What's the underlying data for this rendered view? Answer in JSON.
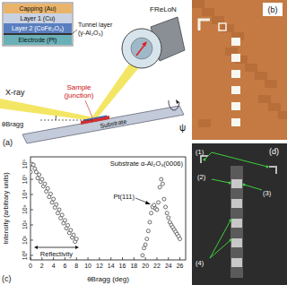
{
  "panel_a": {
    "label": "(a)",
    "layers": [
      "Capping (Au)",
      "Layer 1 (Cu)",
      "Layer 2 (CoFe₂O₄)",
      "Electrode (Pt)"
    ],
    "tunnel_layer": [
      "Tunnel layer",
      "(γ-Al₂O₃)"
    ],
    "detector": "FReLoN",
    "sample": [
      "Sample",
      "(junction)"
    ],
    "beam": "X-ray",
    "angle": "θBragg",
    "substrate": "Substrate",
    "rotation": "ψ"
  },
  "panel_b": {
    "label": "(b)"
  },
  "chart_data": {
    "type": "scatter",
    "label": "(c)",
    "x_label": "θBragg (deg)",
    "y_label": "Intensity (arbitrary units)",
    "annotations": [
      "Substrate α-Al₂O₃(0006)",
      "Reflectivity",
      "Pt(111)"
    ],
    "xlim": [
      0,
      27
    ],
    "xticks": [
      0,
      2,
      4,
      6,
      8,
      10,
      12,
      14,
      16,
      18,
      20,
      22,
      24,
      26
    ],
    "ylim": [
      0.5,
      3000000
    ],
    "yticks": [
      {
        "value": 1,
        "label": "10⁰"
      },
      {
        "value": 10,
        "label": "10¹"
      },
      {
        "value": 100,
        "label": "10²"
      },
      {
        "value": 1000,
        "label": "10³"
      },
      {
        "value": 10000,
        "label": "10⁴"
      },
      {
        "value": 100000,
        "label": "10⁵"
      },
      {
        "value": 1000000,
        "label": "10⁶"
      }
    ],
    "log": "y",
    "grid": false,
    "series": [
      {
        "color": "#333333",
        "marker": "circle",
        "x": [
          0,
          0.25,
          0.5,
          0.75,
          1,
          1.25,
          1.5,
          1.75,
          2,
          2.25,
          2.5,
          2.75,
          3,
          3.25,
          3.5,
          3.75,
          4,
          4.25,
          4.5,
          4.75,
          5,
          5.25,
          5.5,
          5.75,
          6,
          6.25,
          6.5,
          6.75,
          7,
          7.25,
          7.5,
          7.75,
          8
        ],
        "values": [
          300000,
          1000000,
          900000,
          500000,
          300000,
          120000,
          200000,
          70000,
          100000,
          35000,
          50000,
          16000,
          25000,
          7000,
          11000,
          3000,
          5000,
          1400,
          2200,
          600,
          1000,
          280,
          450,
          130,
          200,
          60,
          95,
          30,
          45,
          15,
          22,
          8,
          12
        ]
      },
      {
        "color": "#333333",
        "marker": "circle",
        "x": [
          19.5,
          19.75,
          20,
          20.25,
          20.5,
          20.75,
          21,
          21.25,
          21.5,
          21.75,
          22,
          22.25,
          22.5,
          22.75,
          23,
          23.25,
          23.5,
          23.75,
          24,
          24.25,
          24.5,
          24.75,
          25,
          25.25,
          25.5,
          25.75,
          26
        ],
        "values": [
          1,
          3,
          5,
          12,
          40,
          150,
          600,
          1500,
          2000,
          1200,
          1000,
          3000,
          30000,
          100000,
          50000,
          5000,
          1500,
          600,
          300,
          150,
          100,
          70,
          50,
          35,
          25,
          18,
          12
        ]
      }
    ]
  },
  "panel_d": {
    "label": "(d)",
    "markers": [
      "(1)",
      "(2)",
      "(3)",
      "(4)"
    ]
  }
}
